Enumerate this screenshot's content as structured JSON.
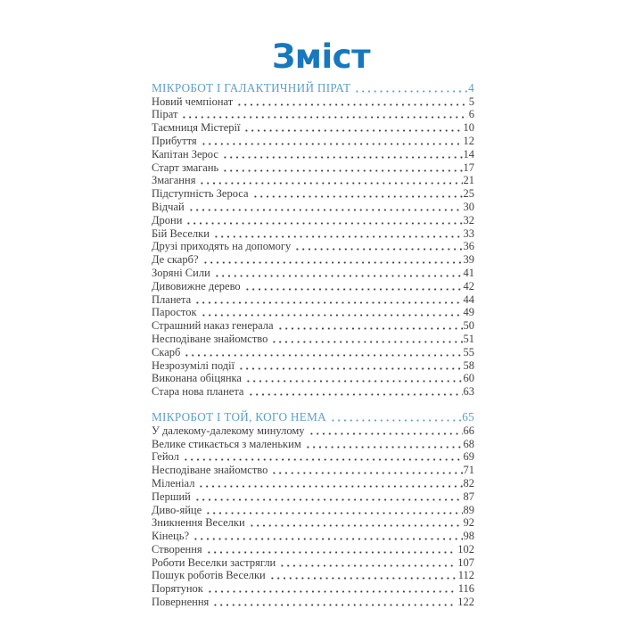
{
  "page": {
    "title": "Зміст",
    "colors": {
      "title": "#1778be",
      "section_header": "#5d9fc6",
      "text": "#3f3f3f",
      "background": "#ffffff"
    }
  },
  "toc": {
    "sections": [
      {
        "header": {
          "label": "МІКРОБОТ І ГАЛАКТИЧНИЙ ПІРАТ",
          "page": "4"
        },
        "entries": [
          {
            "label": "Новий чемпіонат",
            "page": "5"
          },
          {
            "label": "Пірат",
            "page": "6"
          },
          {
            "label": "Таємниця Містерії",
            "page": "10"
          },
          {
            "label": "Прибуття",
            "page": "12"
          },
          {
            "label": "Капітан Зерос",
            "page": "14"
          },
          {
            "label": "Старт змагань",
            "page": "17"
          },
          {
            "label": "Змагання",
            "page": "21"
          },
          {
            "label": "Підступність Зероса",
            "page": "25"
          },
          {
            "label": "Відчай",
            "page": "30"
          },
          {
            "label": "Дрони",
            "page": "32"
          },
          {
            "label": "Бій Веселки",
            "page": "33"
          },
          {
            "label": "Друзі приходять на допомогу",
            "page": "36"
          },
          {
            "label": "Де скарб?",
            "page": "39"
          },
          {
            "label": "Зоряні Сили",
            "page": "41"
          },
          {
            "label": "Дивовижне дерево",
            "page": "42"
          },
          {
            "label": "Планета",
            "page": "44"
          },
          {
            "label": "Паросток",
            "page": "49"
          },
          {
            "label": "Страшний наказ генерала",
            "page": "50"
          },
          {
            "label": "Несподіване знайомство",
            "page": "51"
          },
          {
            "label": "Скарб",
            "page": "55"
          },
          {
            "label": "Незрозумілі події",
            "page": "58"
          },
          {
            "label": "Виконана обіцянка",
            "page": "60"
          },
          {
            "label": "Стара нова планета",
            "page": "63"
          }
        ]
      },
      {
        "header": {
          "label": "МІКРОБОТ І ТОЙ, КОГО НЕМА",
          "page": "65"
        },
        "entries": [
          {
            "label": "У далекому-далекому минулому",
            "page": "66"
          },
          {
            "label": "Велике стикається з маленьким",
            "page": "68"
          },
          {
            "label": "Гейол",
            "page": "69"
          },
          {
            "label": "Несподіване знайомство",
            "page": "71"
          },
          {
            "label": "Міленіал",
            "page": "82"
          },
          {
            "label": "Перший",
            "page": "87"
          },
          {
            "label": "Диво-яйце",
            "page": "89"
          },
          {
            "label": "Зникнення Веселки",
            "page": "92"
          },
          {
            "label": "Кінець?",
            "page": "98"
          },
          {
            "label": "Створення",
            "page": "102"
          },
          {
            "label": "Роботи Веселки застрягли",
            "page": "107"
          },
          {
            "label": "Пошук роботів Веселки",
            "page": "112"
          },
          {
            "label": "Порятунок",
            "page": "116"
          },
          {
            "label": "Повернення",
            "page": "122"
          }
        ]
      }
    ]
  }
}
